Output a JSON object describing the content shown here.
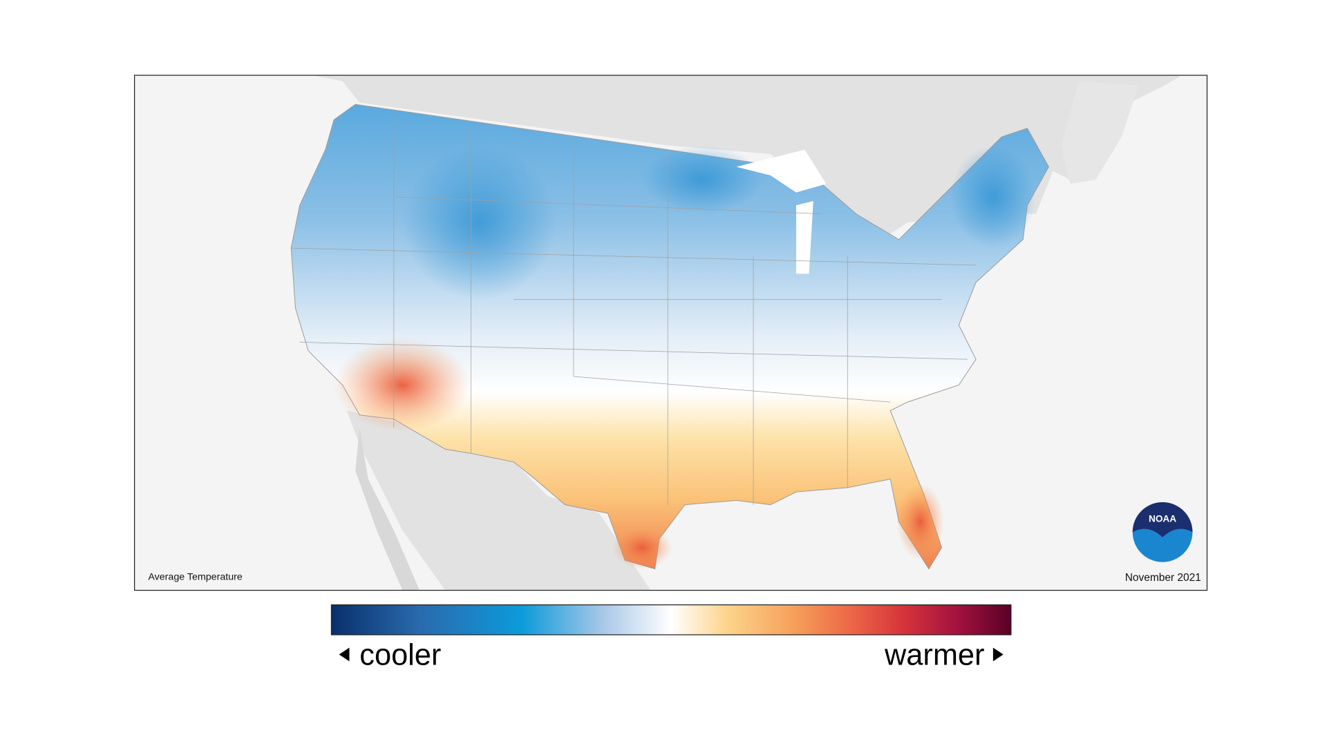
{
  "map": {
    "label": "Average Temperature",
    "date": "November 2021"
  },
  "logo": {
    "text": "NOAA"
  },
  "legend": {
    "low_label": "cooler",
    "high_label": "warmer"
  }
}
